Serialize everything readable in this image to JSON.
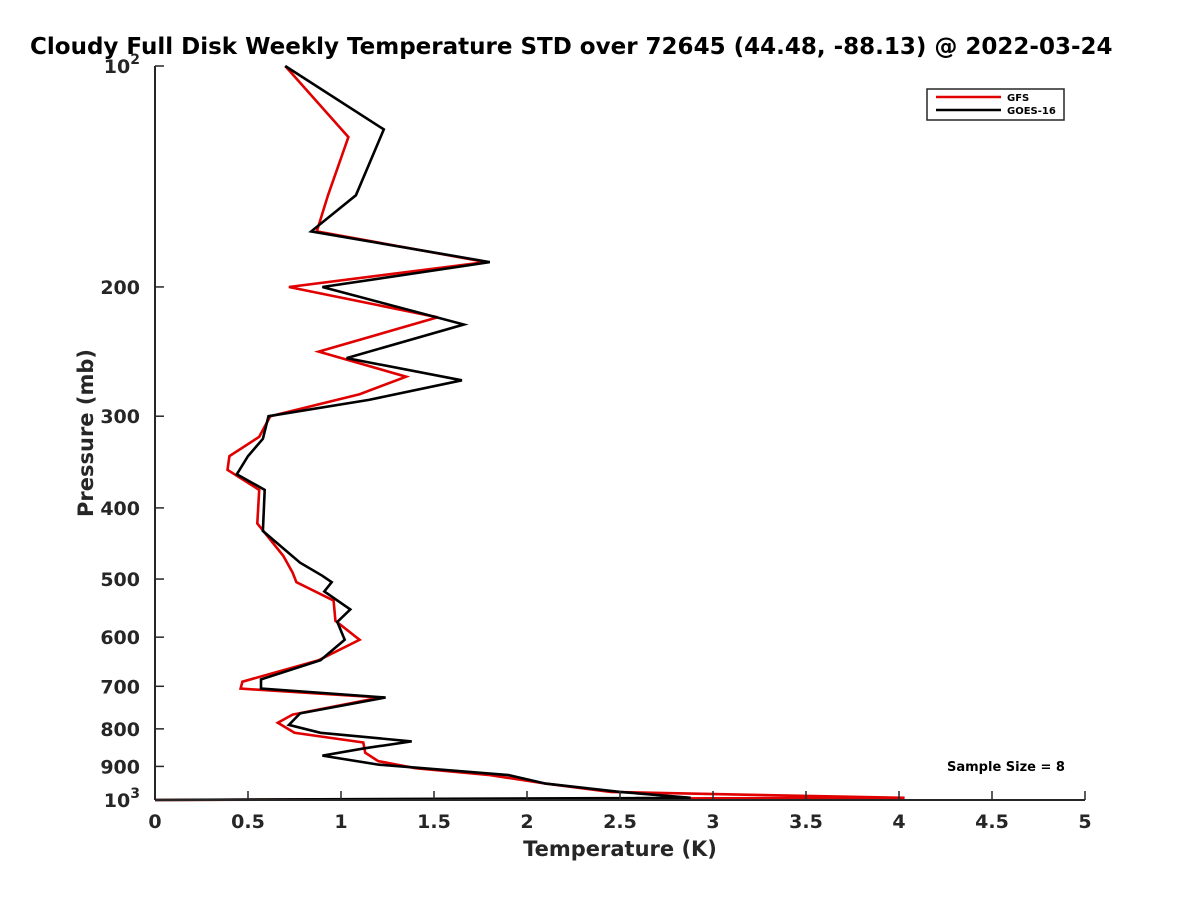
{
  "chart_data": {
    "type": "line",
    "title": "Cloudy Full Disk Weekly Temperature STD over 72645 (44.48, -88.13) @ 2022-03-24",
    "xlabel": "Temperature (K)",
    "ylabel": "Pressure (mb)",
    "xlim": [
      0,
      5
    ],
    "ylim": [
      100,
      1000
    ],
    "yscale": "log",
    "y_reversed": true,
    "grid": false,
    "legend_position": "top-right",
    "x_ticks": [
      {
        "value": 0,
        "label": "0"
      },
      {
        "value": 0.5,
        "label": "0.5"
      },
      {
        "value": 1,
        "label": "1"
      },
      {
        "value": 1.5,
        "label": "1.5"
      },
      {
        "value": 2,
        "label": "2"
      },
      {
        "value": 2.5,
        "label": "2.5"
      },
      {
        "value": 3,
        "label": "3"
      },
      {
        "value": 3.5,
        "label": "3.5"
      },
      {
        "value": 4,
        "label": "4"
      },
      {
        "value": 4.5,
        "label": "4.5"
      },
      {
        "value": 5,
        "label": "5"
      }
    ],
    "y_ticks": [
      {
        "value": 100,
        "base": "10",
        "exp": "2"
      },
      {
        "value": 200,
        "label": "200"
      },
      {
        "value": 300,
        "label": "300"
      },
      {
        "value": 400,
        "label": "400"
      },
      {
        "value": 500,
        "label": "500"
      },
      {
        "value": 600,
        "label": "600"
      },
      {
        "value": 700,
        "label": "700"
      },
      {
        "value": 800,
        "label": "800"
      },
      {
        "value": 900,
        "label": "900"
      },
      {
        "value": 1000,
        "base": "10",
        "exp": "3"
      }
    ],
    "series": [
      {
        "name": "GFS",
        "color": "#e00000",
        "points": [
          [
            0.7,
            100
          ],
          [
            1.04,
            125
          ],
          [
            0.93,
            150
          ],
          [
            0.87,
            168
          ],
          [
            1.78,
            185
          ],
          [
            0.72,
            200
          ],
          [
            1.52,
            220
          ],
          [
            0.88,
            245
          ],
          [
            1.35,
            265
          ],
          [
            1.1,
            280
          ],
          [
            0.62,
            300
          ],
          [
            0.56,
            320
          ],
          [
            0.4,
            340
          ],
          [
            0.39,
            355
          ],
          [
            0.56,
            378
          ],
          [
            0.55,
            420
          ],
          [
            0.69,
            465
          ],
          [
            0.74,
            490
          ],
          [
            0.76,
            505
          ],
          [
            0.96,
            535
          ],
          [
            0.97,
            570
          ],
          [
            1.1,
            605
          ],
          [
            0.88,
            645
          ],
          [
            0.47,
            690
          ],
          [
            0.46,
            705
          ],
          [
            1.21,
            725
          ],
          [
            0.74,
            765
          ],
          [
            0.66,
            785
          ],
          [
            0.75,
            810
          ],
          [
            1.12,
            835
          ],
          [
            1.13,
            862
          ],
          [
            1.2,
            885
          ],
          [
            1.4,
            905
          ],
          [
            1.8,
            925
          ],
          [
            2.1,
            950
          ],
          [
            2.45,
            975
          ],
          [
            3.3,
            985
          ],
          [
            4.03,
            993
          ],
          [
            0.0,
            1000
          ]
        ]
      },
      {
        "name": "GOES-16",
        "color": "#000000",
        "points": [
          [
            0.7,
            100
          ],
          [
            1.23,
            122
          ],
          [
            1.08,
            150
          ],
          [
            0.84,
            168
          ],
          [
            1.8,
            185
          ],
          [
            0.9,
            200
          ],
          [
            1.66,
            225
          ],
          [
            1.03,
            250
          ],
          [
            1.65,
            268
          ],
          [
            1.15,
            285
          ],
          [
            0.61,
            300
          ],
          [
            0.58,
            322
          ],
          [
            0.5,
            340
          ],
          [
            0.44,
            360
          ],
          [
            0.59,
            378
          ],
          [
            0.58,
            430
          ],
          [
            0.78,
            475
          ],
          [
            0.9,
            495
          ],
          [
            0.95,
            505
          ],
          [
            0.91,
            520
          ],
          [
            1.05,
            550
          ],
          [
            0.98,
            572
          ],
          [
            1.02,
            605
          ],
          [
            0.89,
            645
          ],
          [
            0.57,
            685
          ],
          [
            0.57,
            705
          ],
          [
            1.24,
            725
          ],
          [
            0.78,
            762
          ],
          [
            0.72,
            790
          ],
          [
            0.89,
            810
          ],
          [
            1.38,
            832
          ],
          [
            1.13,
            850
          ],
          [
            0.9,
            870
          ],
          [
            1.2,
            895
          ],
          [
            1.9,
            925
          ],
          [
            2.1,
            950
          ],
          [
            2.5,
            975
          ],
          [
            2.88,
            993
          ],
          [
            0.0,
            1000
          ]
        ]
      }
    ],
    "annotations": [
      {
        "text": "Sample Size = 8",
        "position": "bottom-right"
      }
    ]
  }
}
